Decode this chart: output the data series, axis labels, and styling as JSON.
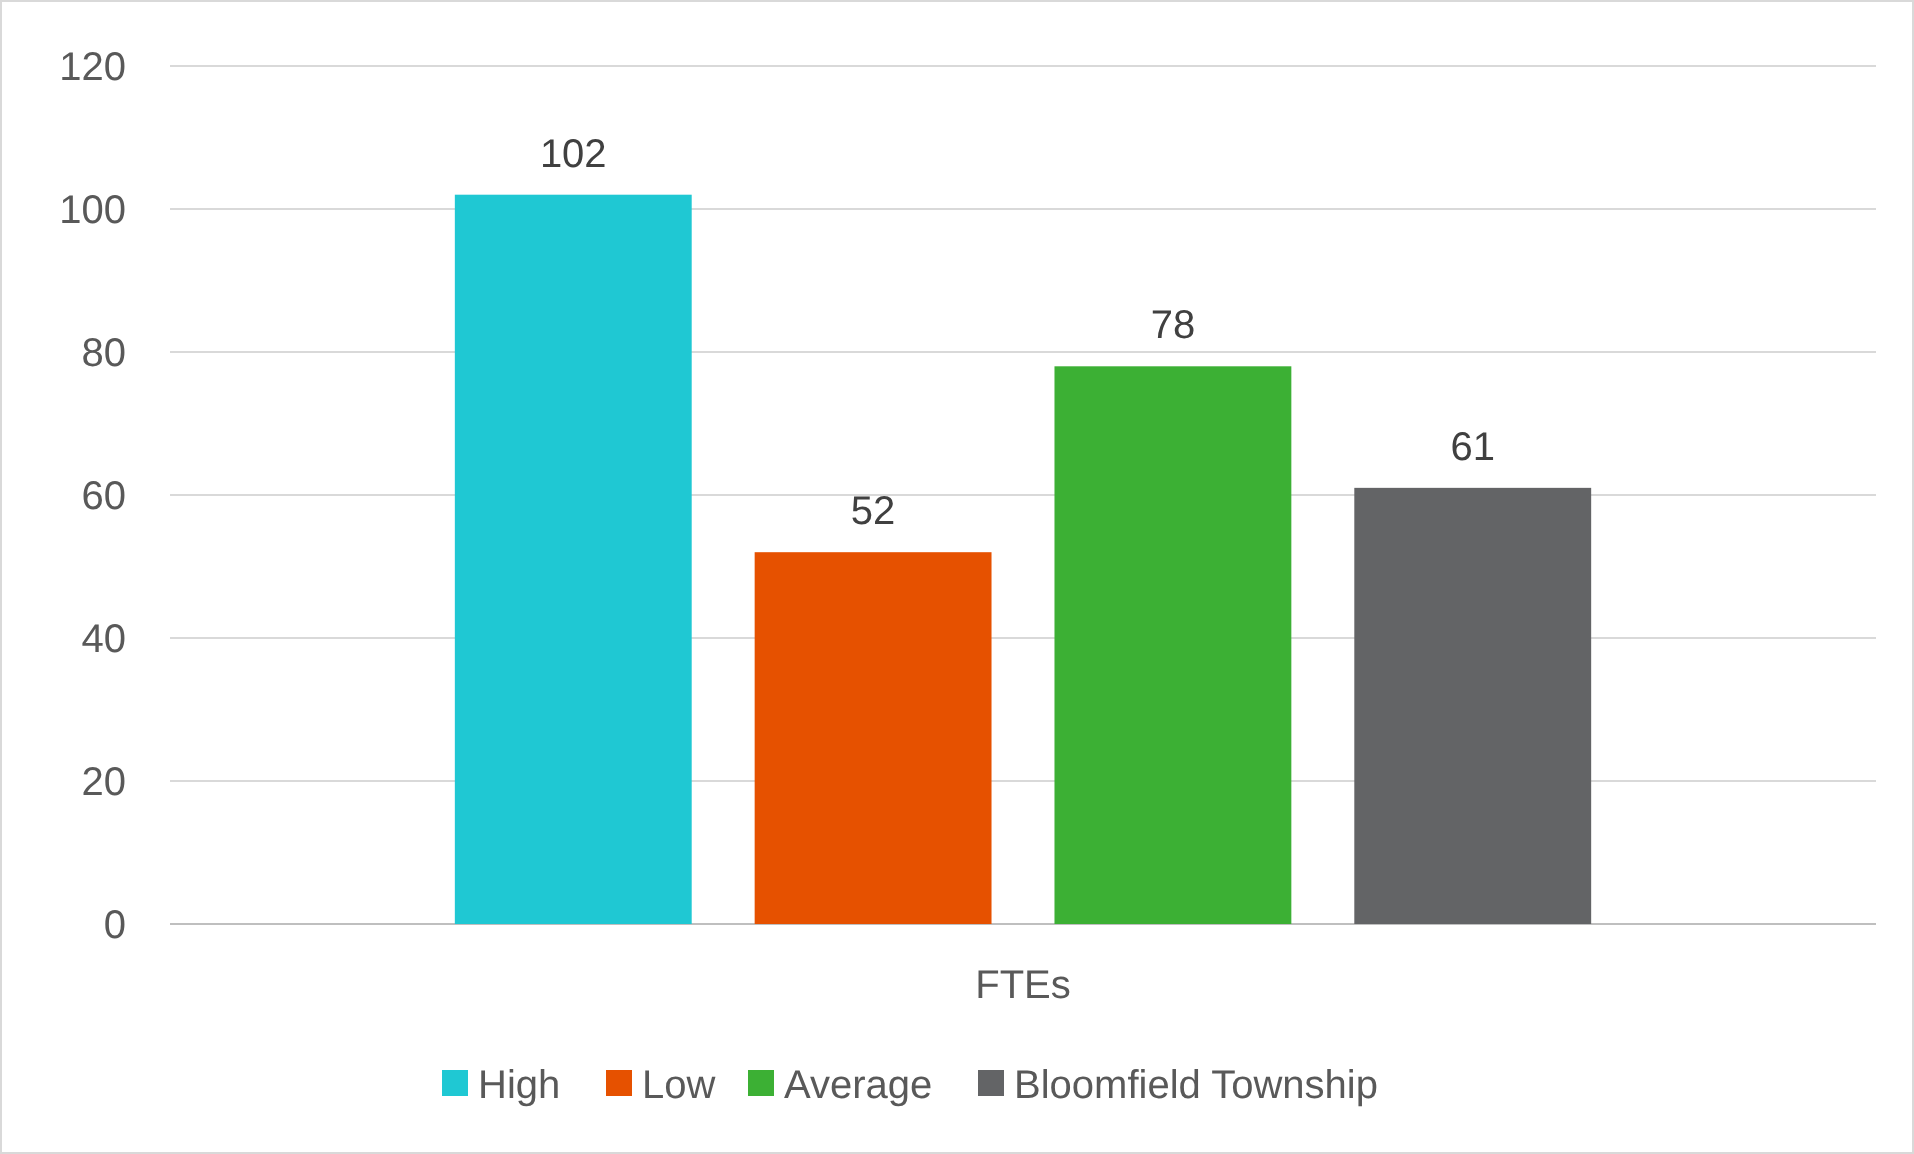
{
  "chart_data": {
    "type": "bar",
    "categories": [
      "FTEs"
    ],
    "series": [
      {
        "name": "High",
        "color": "#1fc8d3",
        "values": [
          102
        ]
      },
      {
        "name": "Low",
        "color": "#e65100",
        "values": [
          52
        ]
      },
      {
        "name": "Average",
        "color": "#3cb034",
        "values": [
          78
        ]
      },
      {
        "name": "Bloomfield Township",
        "color": "#636466",
        "values": [
          61
        ]
      }
    ],
    "ylim": [
      0,
      120
    ],
    "yticks": [
      0,
      20,
      40,
      60,
      80,
      100,
      120
    ],
    "grid": "y",
    "legend": "bottom",
    "data_labels": true
  }
}
